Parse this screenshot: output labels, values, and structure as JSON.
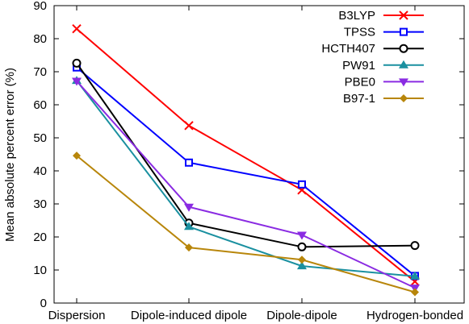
{
  "chart_data": {
    "type": "line",
    "ylabel": "Mean absolute percent error (%)",
    "xlabel": "",
    "categories": [
      "Dispersion",
      "Dipole-induced dipole",
      "Dipole-dipole",
      "Hydrogen-bonded"
    ],
    "ylim": [
      0,
      90
    ],
    "yticks": [
      0,
      10,
      20,
      30,
      40,
      50,
      60,
      70,
      80,
      90
    ],
    "grid": false,
    "legend": "top-right",
    "series": [
      {
        "name": "B3LYP",
        "color": "#ff0000",
        "marker": "x",
        "values": [
          83,
          53.7,
          34.2,
          6.5
        ]
      },
      {
        "name": "TPSS",
        "color": "#0000ff",
        "marker": "square-open",
        "values": [
          71.3,
          42.5,
          35.9,
          8.2
        ]
      },
      {
        "name": "HCTH407",
        "color": "#000000",
        "marker": "circle-open",
        "values": [
          72.6,
          24.2,
          17,
          17.4
        ]
      },
      {
        "name": "PW91",
        "color": "#1a90a0",
        "marker": "triangle-up",
        "values": [
          67.3,
          23.1,
          11.2,
          8.1
        ]
      },
      {
        "name": "PBE0",
        "color": "#8a2be2",
        "marker": "triangle-down",
        "values": [
          67.2,
          29.1,
          20.6,
          4.6
        ]
      },
      {
        "name": "B97-1",
        "color": "#b8860b",
        "marker": "diamond",
        "values": [
          44.6,
          16.8,
          13.1,
          3.3
        ]
      }
    ]
  }
}
